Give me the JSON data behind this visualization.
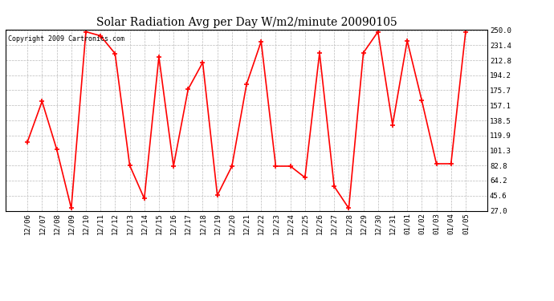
{
  "title": "Solar Radiation Avg per Day W/m2/minute 20090105",
  "copyright": "Copyright 2009 Cartronics.com",
  "line_color": "red",
  "marker": "+",
  "marker_size": 5,
  "marker_linewidth": 1.2,
  "line_width": 1.2,
  "background_color": "#ffffff",
  "grid_color": "#bbbbbb",
  "dates": [
    "12/06",
    "12/07",
    "12/08",
    "12/09",
    "12/10",
    "12/11",
    "12/12",
    "12/13",
    "12/14",
    "12/15",
    "12/16",
    "12/17",
    "12/18",
    "12/19",
    "12/20",
    "12/21",
    "12/22",
    "12/23",
    "12/24",
    "12/25",
    "12/26",
    "12/27",
    "12/28",
    "12/29",
    "12/30",
    "12/31",
    "01/01",
    "01/02",
    "01/03",
    "01/04",
    "01/05"
  ],
  "values": [
    112.0,
    162.0,
    103.0,
    30.0,
    248.0,
    243.0,
    221.0,
    83.0,
    42.0,
    217.0,
    82.0,
    177.0,
    210.0,
    46.0,
    82.0,
    183.0,
    236.0,
    82.0,
    82.0,
    68.0,
    222.0,
    57.0,
    30.0,
    222.0,
    248.0,
    133.0,
    237.0,
    163.0,
    85.0,
    85.0,
    248.0
  ],
  "ylim": [
    27.0,
    250.0
  ],
  "yticks": [
    27.0,
    45.6,
    64.2,
    82.8,
    101.3,
    119.9,
    138.5,
    157.1,
    175.7,
    194.2,
    212.8,
    231.4,
    250.0
  ],
  "title_fontsize": 10,
  "tick_fontsize": 6.5,
  "copyright_fontsize": 6
}
